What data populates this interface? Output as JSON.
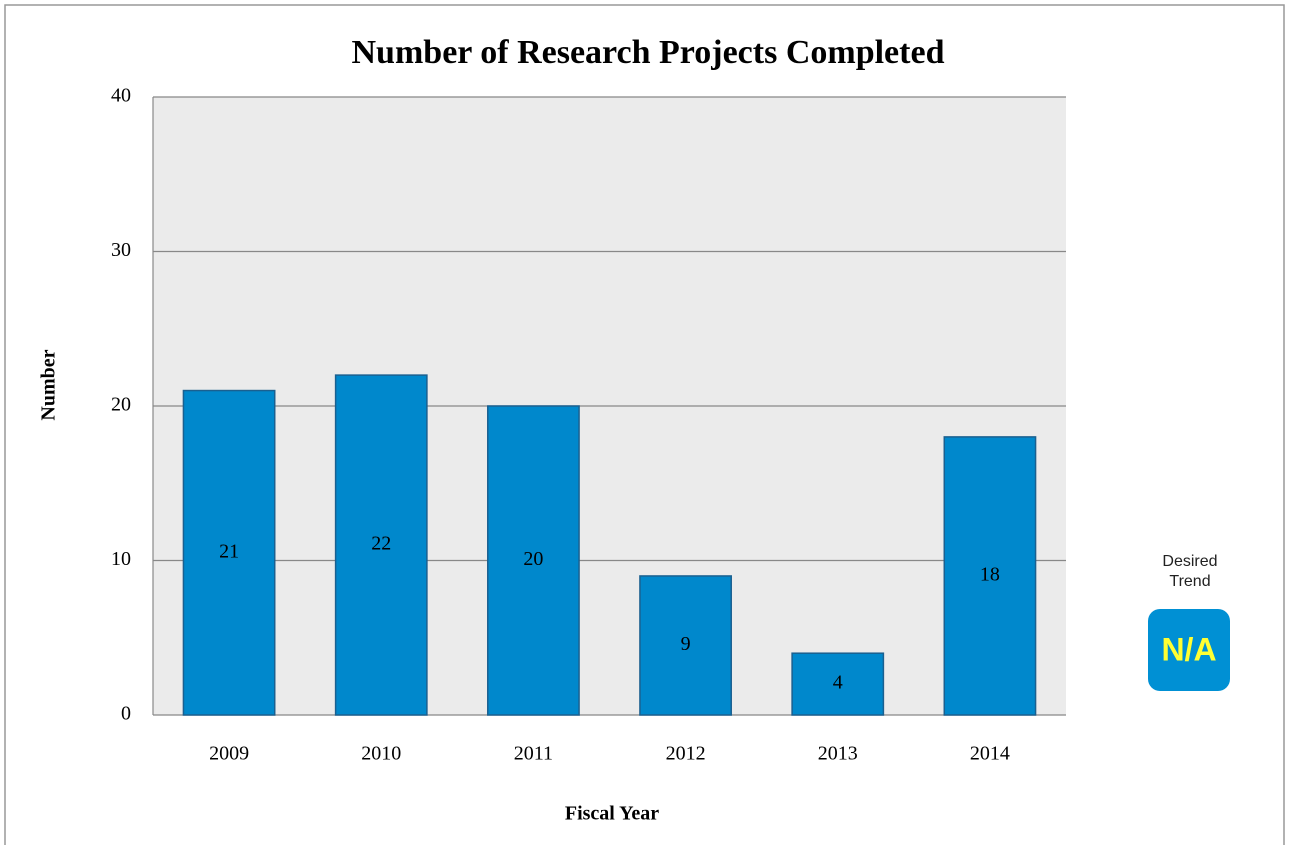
{
  "chart_data": {
    "type": "bar",
    "title": "Number of Research Projects Completed",
    "x_label": "Fiscal Year",
    "y_label": "Number",
    "categories": [
      "2009",
      "2010",
      "2011",
      "2012",
      "2013",
      "2014"
    ],
    "values": [
      21,
      22,
      20,
      9,
      4,
      18
    ],
    "color": "#0088cc",
    "ylim": [
      0,
      40
    ],
    "yticks": [
      0,
      10,
      20,
      30,
      40
    ],
    "grid": true,
    "trend_label": "Desired Trend",
    "trend_value": "N/A"
  }
}
